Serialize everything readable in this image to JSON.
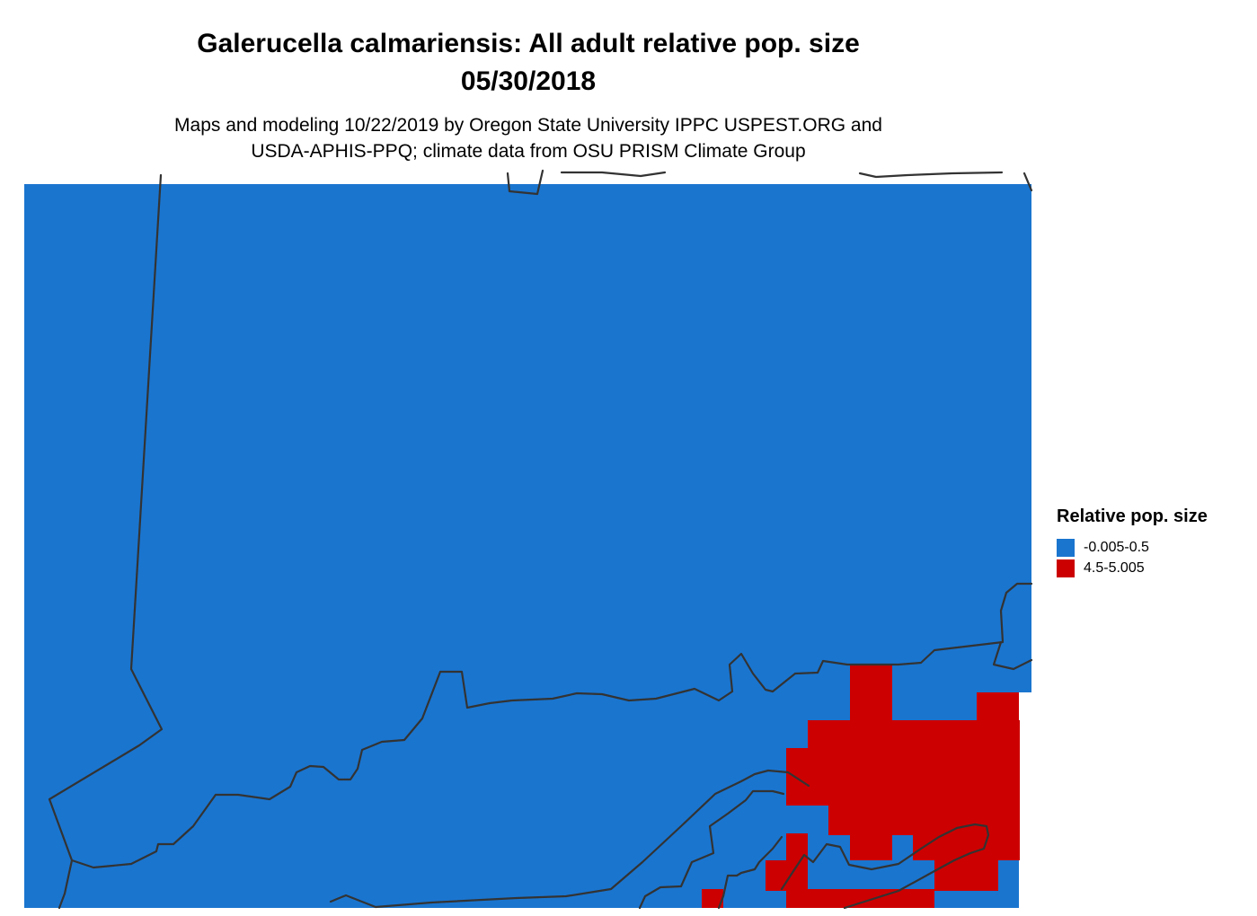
{
  "title": {
    "line1": "Galerucella calmariensis: All adult relative pop. size",
    "line2": "05/30/2018"
  },
  "subtitle": {
    "line1": "Maps and modeling 10/22/2019 by Oregon State University IPPC USPEST.ORG and",
    "line2": "USDA-APHIS-PPQ; climate data from OSU PRISM Climate Group"
  },
  "legend": {
    "title": "Relative pop. size",
    "items": [
      {
        "label": "-0.005-0.5",
        "color": "#1a75cf"
      },
      {
        "label": "4.5-5.005",
        "color": "#cc0000"
      }
    ]
  },
  "colors": {
    "low": "#1a75cf",
    "high": "#cc0000",
    "border": "#333333",
    "background": "#ffffff"
  }
}
